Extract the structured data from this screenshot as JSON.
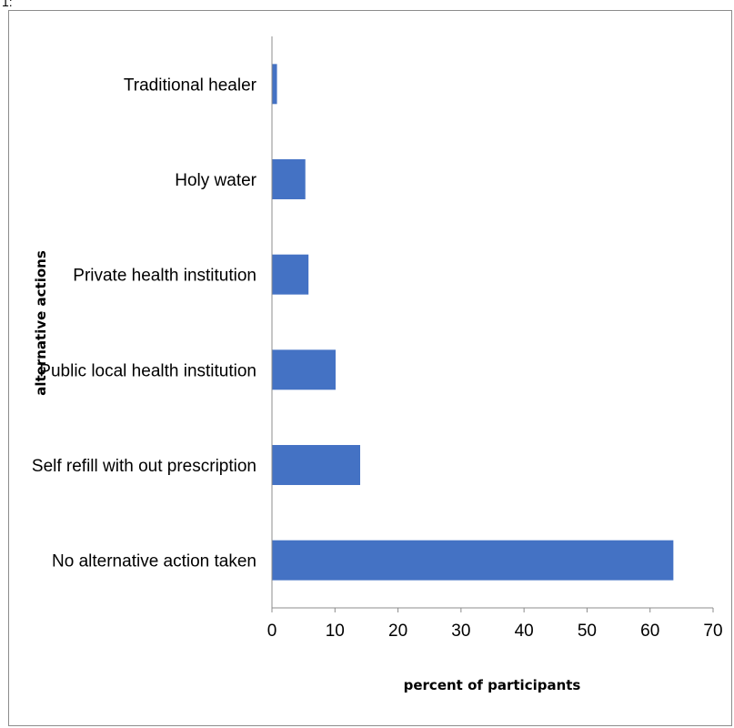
{
  "corner_mark": "1:",
  "chart_data": {
    "type": "bar",
    "orientation": "horizontal",
    "categories": [
      "Traditional healer",
      "Holy water",
      "Private health institution",
      "Public local health institution",
      "Self refill with out prescription",
      "No alternative action taken"
    ],
    "values": [
      0.8,
      5.3,
      5.8,
      10.1,
      14.0,
      63.7
    ],
    "xlabel": "percent of participants",
    "ylabel": "alternative actions",
    "xlim": [
      0,
      70
    ],
    "xticks": [
      0,
      10,
      20,
      30,
      40,
      50,
      60,
      70
    ],
    "grid": false,
    "legend": "none",
    "bar_color": "#4472c4"
  }
}
